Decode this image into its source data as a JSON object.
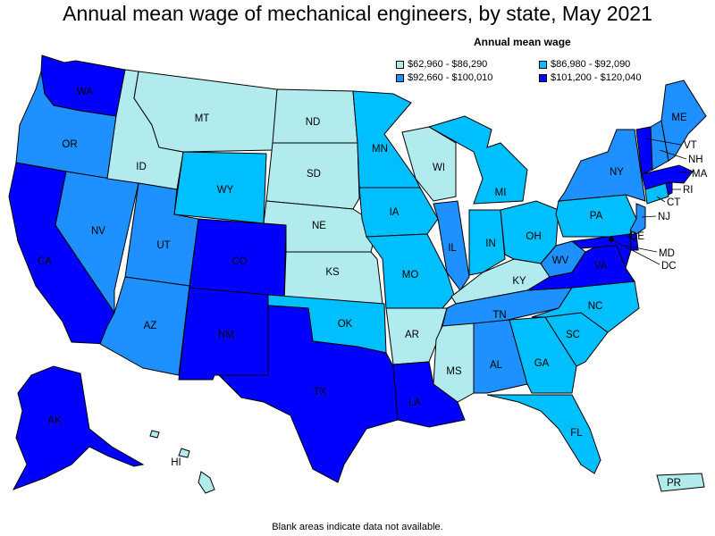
{
  "title": "Annual mean wage of mechanical engineers, by state, May 2021",
  "legend": {
    "title": "Annual mean wage",
    "bins": [
      {
        "label": "$62,960 - $86,290",
        "color": "#b2ebee"
      },
      {
        "label": "$86,980 - $92,090",
        "color": "#00bfff"
      },
      {
        "label": "$92,660 - $100,010",
        "color": "#1e90ff"
      },
      {
        "label": "$101,200 - $120,040",
        "color": "#0000ff"
      }
    ]
  },
  "footnote": "Blank areas indicate data not available.",
  "states": {
    "WA": "WA",
    "OR": "OR",
    "CA": "CA",
    "NV": "NV",
    "ID": "ID",
    "MT": "MT",
    "WY": "WY",
    "UT": "UT",
    "AZ": "AZ",
    "CO": "CO",
    "NM": "NM",
    "ND": "ND",
    "SD": "SD",
    "NE": "NE",
    "KS": "KS",
    "OK": "OK",
    "TX": "TX",
    "MN": "MN",
    "IA": "IA",
    "MO": "MO",
    "AR": "AR",
    "LA": "LA",
    "WI": "WI",
    "IL": "IL",
    "MS": "MS",
    "MI": "MI",
    "IN": "IN",
    "KY": "KY",
    "TN": "TN",
    "AL": "AL",
    "OH": "OH",
    "WV": "WV",
    "GA": "GA",
    "FL": "FL",
    "SC": "SC",
    "NC": "NC",
    "VA": "VA",
    "PA": "PA",
    "NY": "NY",
    "ME": "ME",
    "AK": "AK",
    "HI": "HI",
    "PR": "PR",
    "VT": "VT",
    "NH": "NH",
    "MA": "MA",
    "RI": "RI",
    "CT": "CT",
    "NJ": "NJ",
    "DE": "DE",
    "MD": "MD",
    "DC": "DC"
  }
}
